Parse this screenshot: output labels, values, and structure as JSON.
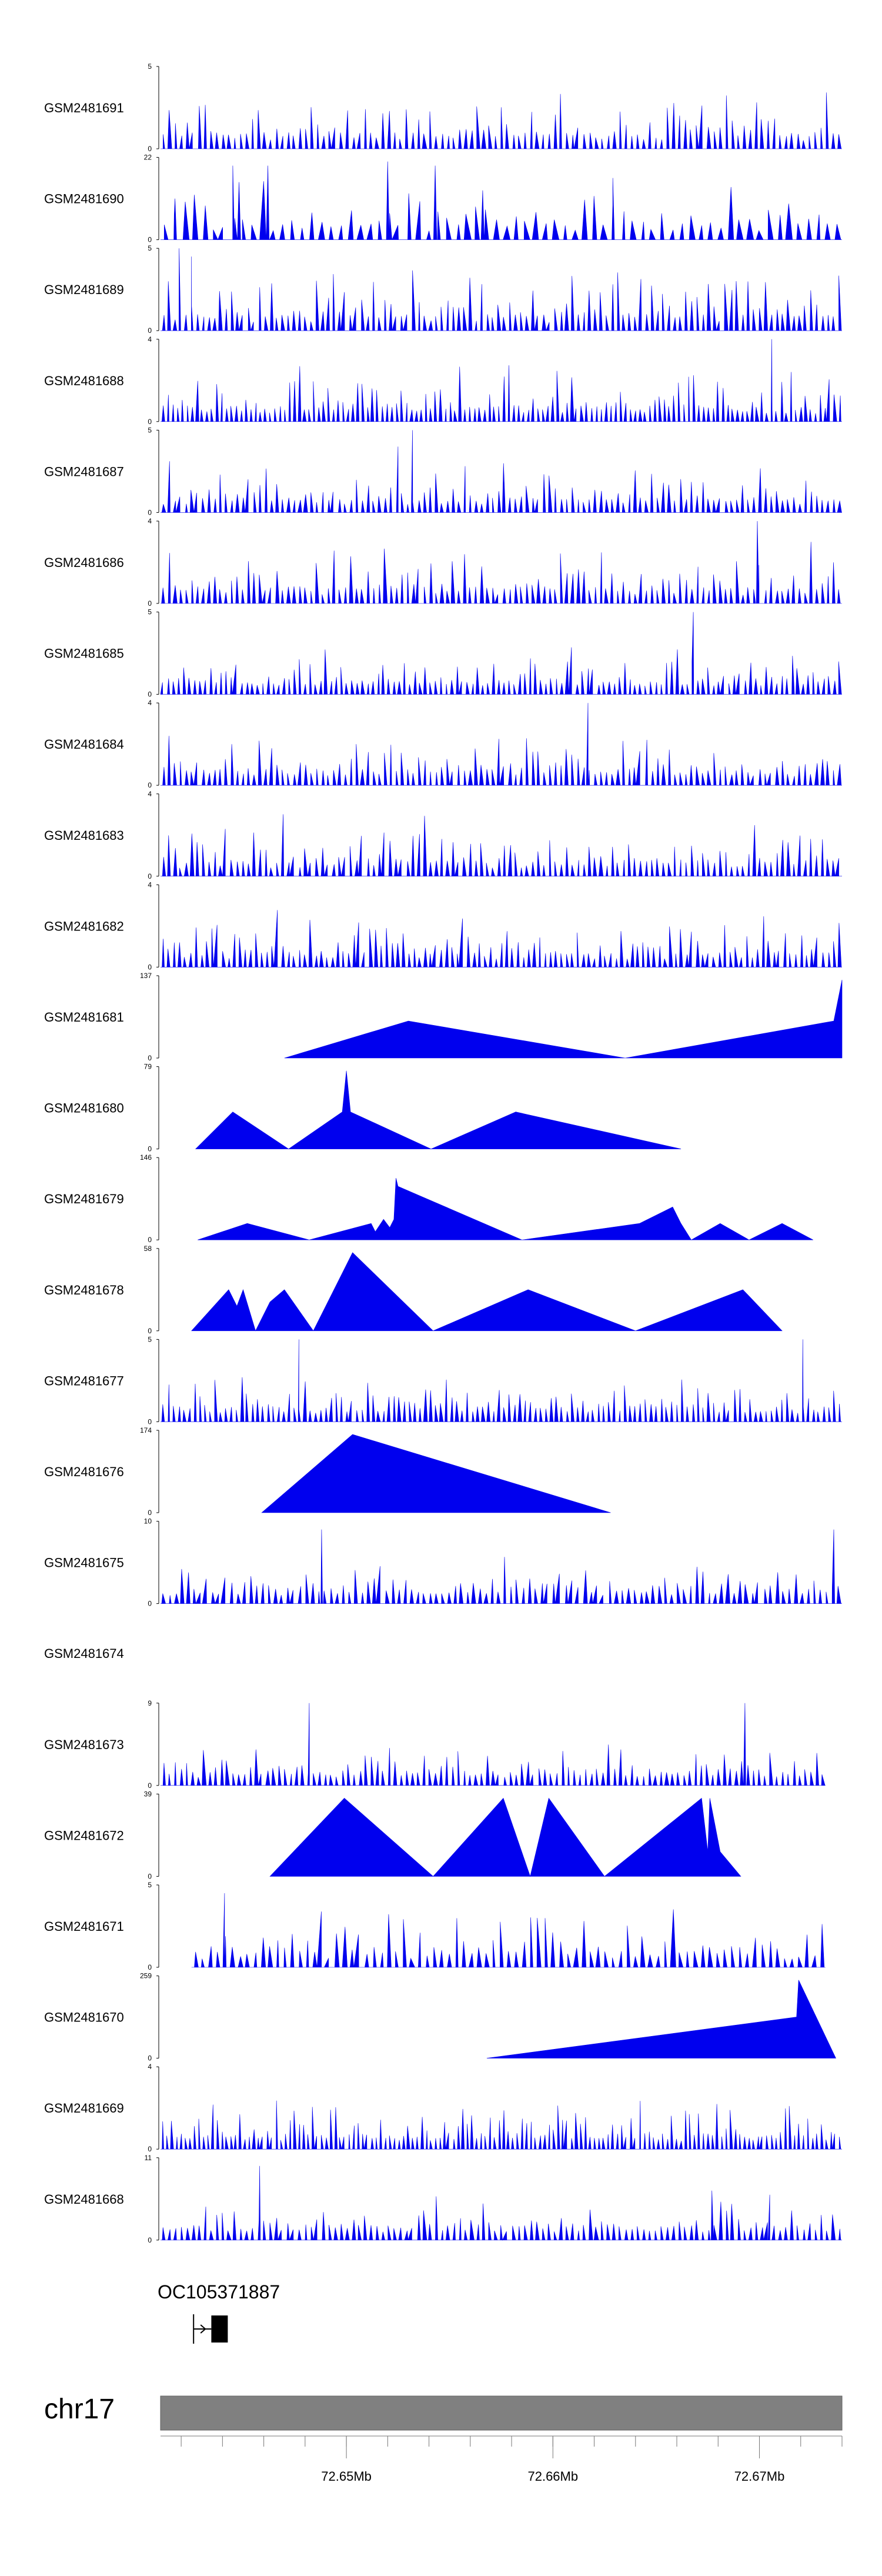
{
  "chart_data": {
    "type": "area",
    "title": "",
    "colors": {
      "fill": "#0000ee",
      "axis": "#000000",
      "ideogram": "#808080",
      "ideogram_border": "#606060"
    },
    "x_axis": {
      "unit": "Mb",
      "range": [
        72.641,
        72.674
      ],
      "major_ticks": [
        72.65,
        72.66,
        72.67
      ],
      "major_labels": [
        "72.65Mb",
        "72.66Mb",
        "72.67Mb"
      ],
      "minor_step": 0.002
    },
    "tracks": [
      {
        "name": "GSM2481691",
        "ymax": 5,
        "ylabels": [
          "5",
          "0"
        ],
        "kind": "dense",
        "seed": 11,
        "n": 115,
        "mean": 0.38,
        "spikes": []
      },
      {
        "name": "GSM2481690",
        "ymax": 22,
        "ylabels": [
          "22",
          "0"
        ],
        "kind": "dense",
        "seed": 12,
        "n": 70,
        "mean": 0.45,
        "spikes": [
          [
            72.6417,
            0.5
          ],
          [
            72.6445,
            0.9
          ],
          [
            72.6448,
            0.7
          ],
          [
            72.6462,
            0.9
          ],
          [
            72.652,
            0.95
          ],
          [
            72.6543,
            0.9
          ],
          [
            72.6566,
            0.6
          ],
          [
            72.6629,
            0.75
          ]
        ]
      },
      {
        "name": "GSM2481689",
        "ymax": 5,
        "ylabels": [
          "5",
          "0"
        ],
        "kind": "dense",
        "seed": 13,
        "n": 120,
        "mean": 0.4,
        "spikes": [
          [
            72.6419,
            1.0
          ],
          [
            72.6425,
            0.9
          ]
        ]
      },
      {
        "name": "GSM2481688",
        "ymax": 4,
        "ylabels": [
          "4",
          "0"
        ],
        "kind": "dense",
        "seed": 14,
        "n": 140,
        "mean": 0.35,
        "spikes": [
          [
            72.6706,
            1.0
          ]
        ]
      },
      {
        "name": "GSM2481687",
        "ymax": 5,
        "ylabels": [
          "5",
          "0"
        ],
        "kind": "dense",
        "seed": 15,
        "n": 120,
        "mean": 0.35,
        "spikes": [
          [
            72.6532,
            1.0
          ],
          [
            72.6525,
            0.8
          ]
        ]
      },
      {
        "name": "GSM2481686",
        "ymax": 4,
        "ylabels": [
          "4",
          "0"
        ],
        "kind": "dense",
        "seed": 16,
        "n": 120,
        "mean": 0.38,
        "spikes": [
          [
            72.6699,
            1.0
          ]
        ]
      },
      {
        "name": "GSM2481685",
        "ymax": 5,
        "ylabels": [
          "5",
          "0"
        ],
        "kind": "dense",
        "seed": 17,
        "n": 130,
        "mean": 0.3,
        "spikes": [
          [
            72.6668,
            1.0
          ]
        ]
      },
      {
        "name": "GSM2481684",
        "ymax": 4,
        "ylabels": [
          "4",
          "0"
        ],
        "kind": "dense",
        "seed": 18,
        "n": 120,
        "mean": 0.32,
        "spikes": [
          [
            72.6617,
            1.0
          ]
        ]
      },
      {
        "name": "GSM2481683",
        "ymax": 4,
        "ylabels": [
          "4",
          "0"
        ],
        "kind": "dense",
        "seed": 19,
        "n": 120,
        "mean": 0.4,
        "spikes": []
      },
      {
        "name": "GSM2481682",
        "ymax": 4,
        "ylabels": [
          "4",
          "0"
        ],
        "kind": "dense",
        "seed": 20,
        "n": 125,
        "mean": 0.38,
        "spikes": []
      },
      {
        "name": "GSM2481681",
        "ymax": 137,
        "ylabels": [
          "137",
          "0"
        ],
        "kind": "points",
        "points": [
          [
            72.647,
            0
          ],
          [
            72.653,
            0.45
          ],
          [
            72.6635,
            0
          ],
          [
            72.6736,
            0.45
          ],
          [
            72.674,
            0.95
          ],
          [
            72.674,
            0
          ]
        ]
      },
      {
        "name": "GSM2481680",
        "ymax": 79,
        "ylabels": [
          "79",
          "0"
        ],
        "kind": "points",
        "points": [
          [
            72.6427,
            0
          ],
          [
            72.6445,
            0.45
          ],
          [
            72.6472,
            0
          ],
          [
            72.6498,
            0.45
          ],
          [
            72.65,
            0.95
          ],
          [
            72.6502,
            0.45
          ],
          [
            72.6541,
            0
          ],
          [
            72.6582,
            0.45
          ],
          [
            72.6662,
            0
          ]
        ]
      },
      {
        "name": "GSM2481679",
        "ymax": 146,
        "ylabels": [
          "146",
          "0"
        ],
        "kind": "points",
        "points": [
          [
            72.6428,
            0
          ],
          [
            72.6452,
            0.2
          ],
          [
            72.6482,
            0
          ],
          [
            72.6512,
            0.2
          ],
          [
            72.6514,
            0.1
          ],
          [
            72.6518,
            0.25
          ],
          [
            72.6521,
            0.15
          ],
          [
            72.6523,
            0.25
          ],
          [
            72.6524,
            0.75
          ],
          [
            72.6525,
            0.65
          ],
          [
            72.6585,
            0
          ],
          [
            72.6642,
            0.2
          ],
          [
            72.6658,
            0.4
          ],
          [
            72.6662,
            0.2
          ],
          [
            72.6667,
            0
          ],
          [
            72.6681,
            0.2
          ],
          [
            72.6695,
            0
          ],
          [
            72.6711,
            0.2
          ],
          [
            72.6726,
            0
          ]
        ]
      },
      {
        "name": "GSM2481678",
        "ymax": 58,
        "ylabels": [
          "58",
          "0"
        ],
        "kind": "points",
        "points": [
          [
            72.6425,
            0
          ],
          [
            72.6443,
            0.5
          ],
          [
            72.6447,
            0.3
          ],
          [
            72.645,
            0.5
          ],
          [
            72.6456,
            0
          ],
          [
            72.6463,
            0.35
          ],
          [
            72.647,
            0.5
          ],
          [
            72.6484,
            0
          ],
          [
            72.6503,
            0.95
          ],
          [
            72.6542,
            0
          ],
          [
            72.6588,
            0.5
          ],
          [
            72.664,
            0
          ],
          [
            72.6692,
            0.5
          ],
          [
            72.6711,
            0
          ]
        ]
      },
      {
        "name": "GSM2481677",
        "ymax": 5,
        "ylabels": [
          "5",
          "0"
        ],
        "kind": "dense",
        "seed": 21,
        "n": 130,
        "mean": 0.3,
        "spikes": [
          [
            72.6477,
            1.0
          ],
          [
            72.6721,
            1.0
          ]
        ]
      },
      {
        "name": "GSM2481676",
        "ymax": 174,
        "ylabels": [
          "174",
          "0"
        ],
        "kind": "points",
        "points": [
          [
            72.6459,
            0
          ],
          [
            72.6503,
            0.95
          ],
          [
            72.6628,
            0
          ]
        ]
      },
      {
        "name": "GSM2481675",
        "ymax": 10,
        "ylabels": [
          "10",
          "0"
        ],
        "kind": "dense",
        "seed": 22,
        "n": 110,
        "mean": 0.3,
        "spikes": [
          [
            72.6488,
            0.9
          ],
          [
            72.6736,
            0.9
          ]
        ]
      },
      {
        "name": "GSM2481674",
        "ymax": 0,
        "ylabels": [],
        "kind": "empty"
      },
      {
        "name": "GSM2481673",
        "ymax": 9,
        "ylabels": [
          "9",
          "0"
        ],
        "kind": "dense",
        "seed": 23,
        "n": 115,
        "mean": 0.32,
        "spikes": [
          [
            72.6482,
            1.0
          ],
          [
            72.6693,
            1.0
          ]
        ],
        "xend": 72.6732
      },
      {
        "name": "GSM2481672",
        "ymax": 39,
        "ylabels": [
          "39",
          "0"
        ],
        "kind": "points",
        "points": [
          [
            72.6463,
            0
          ],
          [
            72.6499,
            0.95
          ],
          [
            72.6542,
            0
          ],
          [
            72.6576,
            0.95
          ],
          [
            72.6589,
            0
          ],
          [
            72.6598,
            0.95
          ],
          [
            72.6625,
            0
          ],
          [
            72.6672,
            0.95
          ],
          [
            72.6675,
            0.3
          ],
          [
            72.6676,
            0.95
          ],
          [
            72.6681,
            0.3
          ],
          [
            72.6691,
            0
          ]
        ]
      },
      {
        "name": "GSM2481671",
        "ymax": 5,
        "ylabels": [
          "5",
          "0"
        ],
        "kind": "dense",
        "seed": 24,
        "n": 85,
        "mean": 0.4,
        "spikes": [
          [
            72.6441,
            0.9
          ]
        ],
        "xstart": 72.6425,
        "xend": 72.6732
      },
      {
        "name": "GSM2481670",
        "ymax": 259,
        "ylabels": [
          "259",
          "0"
        ],
        "kind": "points",
        "points": [
          [
            72.6568,
            0
          ],
          [
            72.6718,
            0.5
          ],
          [
            72.6719,
            0.95
          ],
          [
            72.6737,
            0
          ]
        ]
      },
      {
        "name": "GSM2481669",
        "ymax": 4,
        "ylabels": [
          "4",
          "0"
        ],
        "kind": "dense",
        "seed": 25,
        "n": 150,
        "mean": 0.33,
        "spikes": []
      },
      {
        "name": "GSM2481668",
        "ymax": 11,
        "ylabels": [
          "11",
          "0"
        ],
        "kind": "dense",
        "seed": 26,
        "n": 115,
        "mean": 0.28,
        "spikes": [
          [
            72.6458,
            0.9
          ],
          [
            72.6677,
            0.6
          ],
          [
            72.6705,
            0.55
          ]
        ]
      }
    ],
    "gene": {
      "label": "OC105371887",
      "start": 72.6426,
      "end": 72.6442,
      "tss": 72.6426,
      "direction": "+"
    },
    "chromosome": "chr17"
  }
}
